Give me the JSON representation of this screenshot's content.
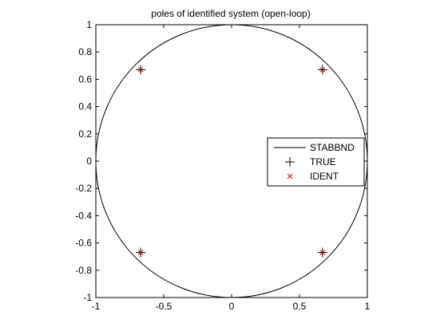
{
  "chart_data": {
    "type": "scatter",
    "title": "poles of identified system (open-loop)",
    "xlabel": "",
    "ylabel": "",
    "xlim": [
      -1,
      1
    ],
    "ylim": [
      -1,
      1
    ],
    "x_ticks": [
      -1,
      -0.5,
      0,
      0.5,
      1
    ],
    "x_tick_labels": [
      "-1",
      "-0.5",
      "0",
      "0.5",
      "1"
    ],
    "y_ticks": [
      1,
      0.8,
      0.6,
      0.4,
      0.2,
      0,
      -0.2,
      -0.4,
      -0.6,
      -0.8,
      -1
    ],
    "y_tick_labels": [
      "1",
      "0.8",
      "0.6",
      "0.4",
      "0.2",
      "0",
      "-0.2",
      "-0.4",
      "-0.6",
      "-0.8",
      "-1"
    ],
    "grid": false,
    "legend_position": "right",
    "series": [
      {
        "name": "STABBND",
        "kind": "line",
        "shape": "unit circle",
        "color": "#000000"
      },
      {
        "name": "TRUE",
        "kind": "marker",
        "marker": "plus",
        "color": "#000000",
        "points": [
          [
            -0.67,
            0.67
          ],
          [
            0.67,
            0.67
          ],
          [
            -0.67,
            -0.67
          ],
          [
            0.67,
            -0.67
          ]
        ]
      },
      {
        "name": "IDENT",
        "kind": "marker",
        "marker": "cross",
        "color": "#cc0000",
        "points": [
          [
            -0.67,
            0.67
          ],
          [
            0.67,
            0.67
          ],
          [
            -0.67,
            -0.67
          ],
          [
            0.67,
            -0.67
          ]
        ]
      }
    ]
  }
}
